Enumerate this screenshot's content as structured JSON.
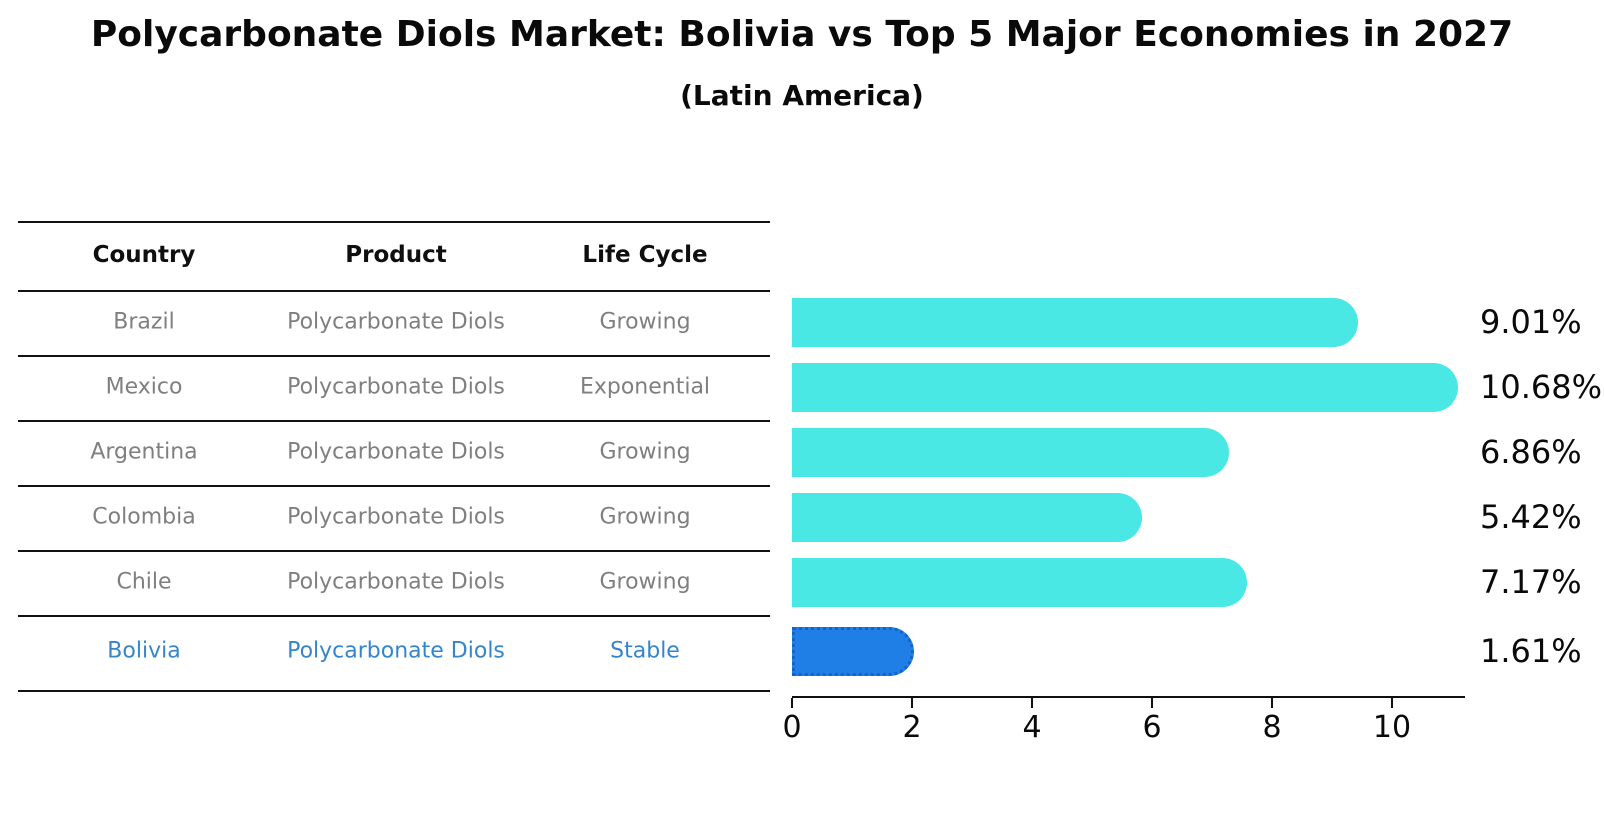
{
  "title": "Polycarbonate Diols Market: Bolivia vs Top 5 Major Economies in 2027",
  "subtitle": "(Latin America)",
  "table": {
    "headers": [
      "Country",
      "Product",
      "Life Cycle"
    ],
    "rows": [
      {
        "country": "Brazil",
        "product": "Polycarbonate Diols",
        "life_cycle": "Growing",
        "highlight": false
      },
      {
        "country": "Mexico",
        "product": "Polycarbonate Diols",
        "life_cycle": "Exponential",
        "highlight": false
      },
      {
        "country": "Argentina",
        "product": "Polycarbonate Diols",
        "life_cycle": "Growing",
        "highlight": false
      },
      {
        "country": "Colombia",
        "product": "Polycarbonate Diols",
        "life_cycle": "Growing",
        "highlight": false
      },
      {
        "country": "Chile",
        "product": "Polycarbonate Diols",
        "life_cycle": "Growing",
        "highlight": false
      },
      {
        "country": "Bolivia",
        "product": "Polycarbonate Diols",
        "life_cycle": "Stable",
        "highlight": true
      }
    ]
  },
  "chart_data": {
    "type": "bar",
    "orientation": "horizontal",
    "title": "Polycarbonate Diols Market: Bolivia vs Top 5 Major Economies in 2027",
    "subtitle": "(Latin America)",
    "categories": [
      "Brazil",
      "Mexico",
      "Argentina",
      "Colombia",
      "Chile",
      "Bolivia"
    ],
    "values": [
      9.01,
      10.68,
      6.86,
      5.42,
      7.17,
      1.61
    ],
    "value_labels": [
      "9.01%",
      "10.68%",
      "6.86%",
      "5.42%",
      "7.17%",
      "1.61%"
    ],
    "xlabel": "",
    "ylabel": "",
    "xlim": [
      0,
      11.2
    ],
    "x_ticks": [
      0,
      2,
      4,
      6,
      8,
      10
    ],
    "x_tick_labels": [
      "0",
      "2",
      "4",
      "6",
      "8",
      "10"
    ],
    "grid": false,
    "legend": false,
    "highlight_index": 5
  },
  "colors": {
    "bar_default": "#49e8e4",
    "bar_highlight": "#1f7fe6",
    "bar_highlight_edge": "#1464c8",
    "table_text": "#7f7f7f",
    "table_highlight_text": "#3585cd",
    "axis": "#111111",
    "text": "#0a0a0a"
  }
}
